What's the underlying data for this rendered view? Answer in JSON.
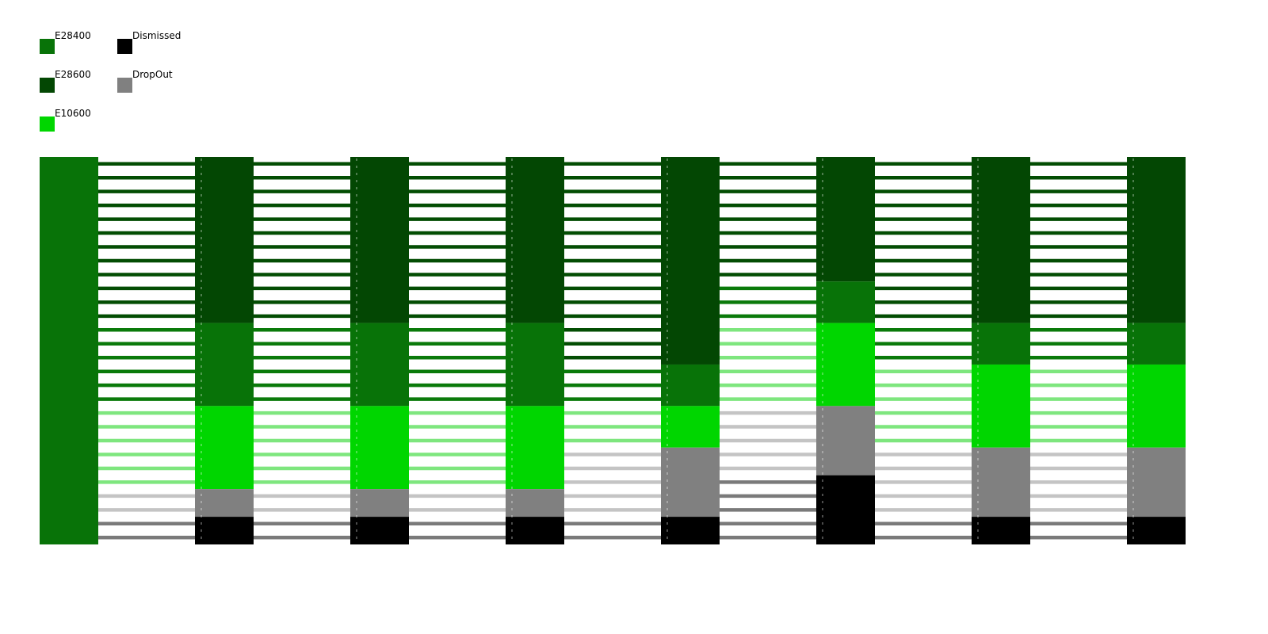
{
  "chart_data": {
    "type": "parallel-sets",
    "title": "",
    "xlabel": "",
    "ylabel": "",
    "legend_position": "top-left",
    "categories": [
      {
        "name": "E28400",
        "color": "#087308"
      },
      {
        "name": "E28600",
        "color": "#034703"
      },
      {
        "name": "E10600",
        "color": "#00d600"
      },
      {
        "name": "Dismissed",
        "color": "#000000"
      },
      {
        "name": "DropOut",
        "color": "#808080"
      }
    ],
    "link_colors": {
      "E28400": "#0a7a0a",
      "E28600": "#034d03",
      "E10600": "#7ee67e",
      "Dismissed": "#7a7a7a",
      "DropOut": "#c4c4c4"
    },
    "stages": [
      {
        "composition": {
          "E28400": 28
        }
      },
      {
        "composition": {
          "E28600": 12,
          "E28400": 6,
          "E10600": 6,
          "DropOut": 2,
          "Dismissed": 2
        }
      },
      {
        "composition": {
          "E28600": 12,
          "E28400": 6,
          "E10600": 6,
          "DropOut": 2,
          "Dismissed": 2
        }
      },
      {
        "composition": {
          "E28600": 12,
          "E28400": 6,
          "E10600": 6,
          "DropOut": 2,
          "Dismissed": 2
        }
      },
      {
        "composition": {
          "E28600": 15,
          "E28400": 3,
          "E10600": 3,
          "DropOut": 5,
          "Dismissed": 2
        }
      },
      {
        "composition": {
          "E28600": 9,
          "E28400": 3,
          "E10600": 6,
          "DropOut": 5,
          "Dismissed": 5
        }
      },
      {
        "composition": {
          "E28600": 12,
          "E28400": 3,
          "E10600": 6,
          "DropOut": 5,
          "Dismissed": 2
        }
      },
      {
        "composition": {
          "E28600": 12,
          "E28400": 3,
          "E10600": 6,
          "DropOut": 5,
          "Dismissed": 2
        }
      }
    ],
    "transitions": [
      [
        "E28600",
        "E28600",
        "E28600",
        "E28600",
        "E28600",
        "E28600",
        "E28600",
        "E28600",
        "E28600",
        "E28600",
        "E28600",
        "E28600",
        "E28400",
        "E28400",
        "E28400",
        "E28400",
        "E28400",
        "E28400",
        "E10600",
        "E10600",
        "E10600",
        "E10600",
        "E10600",
        "E10600",
        "DropOut",
        "DropOut",
        "Dismissed",
        "Dismissed"
      ],
      [
        "E28600",
        "E28600",
        "E28600",
        "E28600",
        "E28600",
        "E28600",
        "E28600",
        "E28600",
        "E28600",
        "E28600",
        "E28600",
        "E28600",
        "E28400",
        "E28400",
        "E28400",
        "E28400",
        "E28400",
        "E28400",
        "E10600",
        "E10600",
        "E10600",
        "E10600",
        "E10600",
        "E10600",
        "DropOut",
        "DropOut",
        "Dismissed",
        "Dismissed"
      ],
      [
        "E28600",
        "E28600",
        "E28600",
        "E28600",
        "E28600",
        "E28600",
        "E28600",
        "E28600",
        "E28600",
        "E28600",
        "E28600",
        "E28600",
        "E28400",
        "E28400",
        "E28400",
        "E28400",
        "E28400",
        "E28400",
        "E10600",
        "E10600",
        "E10600",
        "E10600",
        "E10600",
        "E10600",
        "DropOut",
        "DropOut",
        "Dismissed",
        "Dismissed"
      ],
      [
        "E28600",
        "E28600",
        "E28600",
        "E28600",
        "E28600",
        "E28600",
        "E28600",
        "E28600",
        "E28600",
        "E28600",
        "E28600",
        "E28600",
        "E28600",
        "E28600",
        "E28600",
        "E28400",
        "E28400",
        "E28400",
        "E10600",
        "E10600",
        "E10600",
        "DropOut",
        "DropOut",
        "DropOut",
        "DropOut",
        "DropOut",
        "Dismissed",
        "Dismissed"
      ],
      [
        "E28600",
        "E28600",
        "E28600",
        "E28600",
        "E28600",
        "E28600",
        "E28600",
        "E28600",
        "E28600",
        "E28400",
        "E28400",
        "E28400",
        "E10600",
        "E10600",
        "E10600",
        "E10600",
        "E10600",
        "E10600",
        "DropOut",
        "DropOut",
        "DropOut",
        "DropOut",
        "DropOut",
        "Dismissed",
        "Dismissed",
        "Dismissed",
        "Dismissed",
        "Dismissed"
      ],
      [
        "E28600",
        "E28600",
        "E28600",
        "E28600",
        "E28600",
        "E28600",
        "E28600",
        "E28600",
        "E28600",
        "E28600",
        "E28600",
        "E28600",
        "E28400",
        "E28400",
        "E28400",
        "E10600",
        "E10600",
        "E10600",
        "E10600",
        "E10600",
        "E10600",
        "DropOut",
        "DropOut",
        "DropOut",
        "DropOut",
        "DropOut",
        "Dismissed",
        "Dismissed"
      ],
      [
        "E28600",
        "E28600",
        "E28600",
        "E28600",
        "E28600",
        "E28600",
        "E28600",
        "E28600",
        "E28600",
        "E28600",
        "E28600",
        "E28600",
        "E28400",
        "E28400",
        "E28400",
        "E10600",
        "E10600",
        "E10600",
        "E10600",
        "E10600",
        "E10600",
        "DropOut",
        "DropOut",
        "DropOut",
        "DropOut",
        "DropOut",
        "Dismissed",
        "Dismissed"
      ]
    ]
  }
}
